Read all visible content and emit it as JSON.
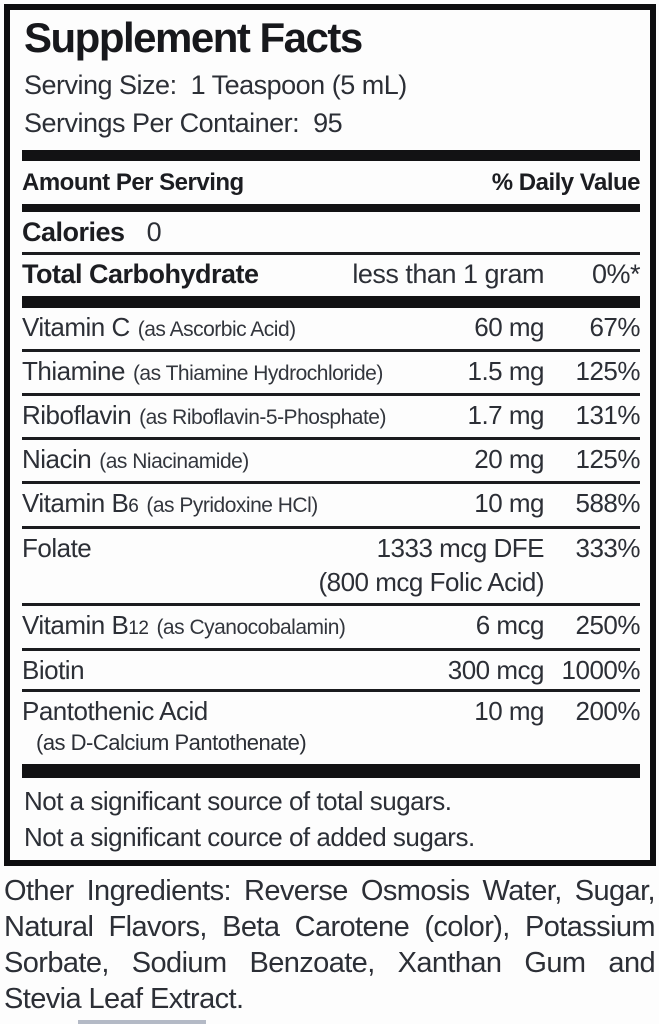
{
  "label": {
    "title": "Supplement Facts",
    "serving_size": "Serving Size:  1 Teaspoon (5 mL)",
    "servings_per_container": "Servings Per Container:  95",
    "amount_per_serving": "Amount Per Serving",
    "daily_value_header": "% Daily Value",
    "calories": {
      "label": "Calories",
      "value": "0"
    },
    "carbohydrate": {
      "label": "Total Carbohydrate",
      "amount": "less than 1 gram",
      "dv": "0%*"
    },
    "nutrients": [
      {
        "name": "Vitamin C",
        "name_sub": "",
        "form": "(as Ascorbic Acid)",
        "amount": "60 mg",
        "dv": "67%"
      },
      {
        "name": "Thiamine",
        "name_sub": "",
        "form": "(as Thiamine Hydrochloride)",
        "amount": "1.5 mg",
        "dv": "125%"
      },
      {
        "name": "Riboflavin",
        "name_sub": "",
        "form": "(as Riboflavin-5-Phosphate)",
        "amount": "1.7 mg",
        "dv": "131%"
      },
      {
        "name": "Niacin",
        "name_sub": "",
        "form": "(as Niacinamide)",
        "amount": "20 mg",
        "dv": "125%"
      },
      {
        "name": "Vitamin B",
        "name_sub": "6",
        "form": "(as Pyridoxine HCl)",
        "amount": "10 mg",
        "dv": "588%"
      },
      {
        "name": "Folate",
        "name_sub": "",
        "form": "",
        "amount": "1333 mcg DFE",
        "dv": "333%",
        "note": "(800 mcg Folic Acid)"
      },
      {
        "name": "Vitamin B",
        "name_sub": "12",
        "form": "(as Cyanocobalamin)",
        "amount": "6 mcg",
        "dv": "250%"
      },
      {
        "name": "Biotin",
        "name_sub": "",
        "form": "",
        "amount": "300 mcg",
        "dv": "1000%"
      },
      {
        "name": "Pantothenic Acid",
        "name_sub": "",
        "form": "",
        "amount": "10 mg",
        "dv": "200%",
        "note2": "(as D-Calcium Pantothenate)"
      }
    ],
    "footnotes": [
      "Not a significant source of total sugars.",
      "Not a significant cource of added sugars."
    ],
    "other_ingredients": "Other Ingredients: Reverse Osmosis Water, Sugar, Natural Flavors, Beta Carotene (color), Potassium Sorbate, Sodium Benzoate, Xanthan Gum and Stevia Leaf Extract."
  }
}
